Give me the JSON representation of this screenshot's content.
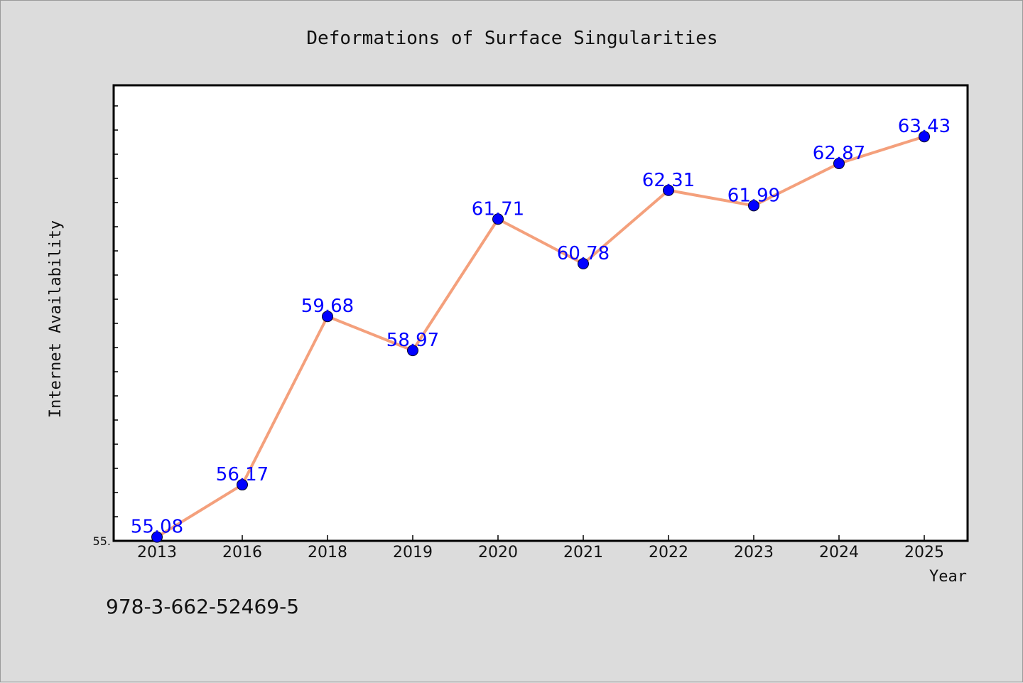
{
  "chart_data": {
    "type": "line",
    "title": "Deformations of Surface Singularities",
    "xlabel": "Year",
    "ylabel": "Internet Availability",
    "categories": [
      "2013",
      "2016",
      "2018",
      "2019",
      "2020",
      "2021",
      "2022",
      "2023",
      "2024",
      "2025"
    ],
    "series": [
      {
        "values": [
          55.08,
          56.17,
          59.68,
          58.97,
          61.71,
          60.78,
          62.31,
          61.99,
          62.87,
          63.43
        ],
        "data_labels": [
          "55.08",
          "56.17",
          "59.68",
          "58.97",
          "61.71",
          "60.78",
          "62.31",
          "61.99",
          "62.87",
          "63.43"
        ],
        "line_color": "#f4a07c",
        "marker_color": "#0000ff"
      }
    ],
    "ylim": [
      55.0,
      64.5
    ],
    "yticks": [
      {
        "value": 55.0,
        "label": "55."
      }
    ],
    "grid": false,
    "legend": "none"
  },
  "footer": {
    "isbn": "978-3-662-52469-5"
  }
}
